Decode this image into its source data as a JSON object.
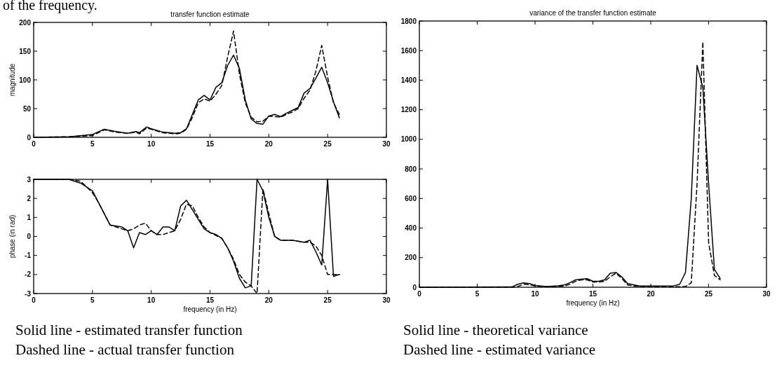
{
  "chart_data": [
    {
      "type": "line",
      "title": "transfer function estimate",
      "ylabel": "magnitude",
      "xlim": [
        0,
        30
      ],
      "ylim": [
        0,
        200
      ],
      "xticks": [
        0,
        5,
        10,
        15,
        20,
        25,
        30
      ],
      "yticks": [
        0,
        50,
        100,
        150,
        200
      ],
      "annotations": [
        "of the frequency."
      ],
      "series": [
        {
          "color": "#000000",
          "line_style": "solid",
          "x": [
            0,
            3,
            5,
            6,
            7,
            8,
            8.7,
            9,
            9.6,
            10,
            11,
            12,
            12.5,
            13,
            13.5,
            14,
            14.5,
            15,
            15.5,
            16,
            16.5,
            17,
            17.5,
            18,
            18.5,
            19,
            19.5,
            20,
            20.5,
            21,
            21.5,
            22,
            22.5,
            23,
            23.5,
            24,
            24.5,
            25,
            25.5,
            26
          ],
          "values": [
            0,
            1,
            5,
            14,
            10,
            7,
            10,
            8,
            18,
            15,
            9,
            7,
            8,
            15,
            40,
            65,
            73,
            65,
            87,
            95,
            125,
            143,
            120,
            65,
            32,
            24,
            23,
            37,
            40,
            36,
            42,
            47,
            52,
            77,
            85,
            103,
            122,
            95,
            62,
            34
          ]
        },
        {
          "color": "#000000",
          "line_style": "dashed",
          "x": [
            0,
            3,
            5,
            6,
            7,
            8,
            8.7,
            9,
            9.6,
            10,
            11,
            12,
            12.5,
            13,
            13.5,
            14,
            14.5,
            15,
            15.5,
            16,
            16.5,
            17,
            17.5,
            18,
            18.5,
            19,
            19.5,
            20,
            20.5,
            21,
            21.5,
            22,
            22.5,
            23,
            23.5,
            24,
            24.5,
            25,
            25.5,
            26
          ],
          "values": [
            0,
            1,
            3,
            13,
            9,
            7,
            9,
            6,
            16,
            14,
            8,
            6,
            7,
            14,
            35,
            60,
            67,
            63,
            75,
            90,
            140,
            185,
            110,
            60,
            35,
            27,
            28,
            37,
            36,
            35,
            40,
            44,
            50,
            68,
            82,
            115,
            160,
            105,
            60,
            40
          ]
        }
      ]
    },
    {
      "type": "line",
      "xlabel": "frequency (in Hz)",
      "ylabel": "phase (in rad)",
      "xlim": [
        0,
        30
      ],
      "ylim": [
        -3,
        3
      ],
      "xticks": [
        0,
        5,
        10,
        15,
        20,
        25,
        30
      ],
      "yticks": [
        -3,
        -2,
        -1,
        0,
        1,
        2,
        3
      ],
      "annotations": [
        "Solid line - estimated transfer function",
        "Dashed line - actual transfer function"
      ],
      "series": [
        {
          "color": "#000000",
          "line_style": "solid",
          "x": [
            0,
            3,
            4,
            5,
            6,
            6.5,
            7.5,
            8,
            8.5,
            9,
            9.5,
            10,
            10.5,
            11,
            11.5,
            12,
            12.5,
            13,
            13.5,
            14,
            14.5,
            15,
            15.5,
            16,
            16.5,
            17,
            17.5,
            18,
            18.5,
            19,
            19.5,
            20,
            20.5,
            21,
            22,
            23,
            23.5,
            24,
            24.5,
            25,
            25.5,
            26
          ],
          "values": [
            3,
            3,
            2.8,
            2.4,
            1.2,
            0.6,
            0.5,
            0.3,
            -0.6,
            0.2,
            0.1,
            0.3,
            0.1,
            0.5,
            0.5,
            0.3,
            1.6,
            1.9,
            1.4,
            0.9,
            0.4,
            0.2,
            0.1,
            -0.1,
            -0.6,
            -1.3,
            -2.2,
            -2.7,
            -2.6,
            3,
            2.4,
            1,
            0,
            -0.2,
            -0.2,
            -0.3,
            -0.2,
            -0.8,
            -1.5,
            3,
            -2.1,
            -2
          ]
        },
        {
          "color": "#000000",
          "line_style": "dashed",
          "x": [
            0,
            3,
            4,
            5,
            5.5,
            6,
            6.5,
            7.5,
            8,
            8.5,
            9,
            9.5,
            10,
            10.5,
            11,
            12,
            12.5,
            13,
            13.5,
            14,
            14.5,
            15,
            16,
            16.5,
            17,
            17.5,
            18,
            18.5,
            19,
            19.5,
            20,
            20.5,
            21,
            22,
            23,
            23.5,
            24,
            24.5,
            25,
            25.5,
            26
          ],
          "values": [
            3,
            3,
            2.9,
            2.3,
            1.8,
            1.2,
            0.6,
            0.4,
            0.3,
            0.4,
            0.6,
            0.7,
            0.3,
            0.1,
            0.1,
            0.3,
            0.9,
            1.7,
            1.6,
            1,
            0.5,
            0.2,
            -0.1,
            -0.6,
            -1.2,
            -2,
            -2.4,
            -2.6,
            -3,
            2.5,
            1.2,
            0,
            -0.2,
            -0.2,
            -0.3,
            -0.3,
            -0.5,
            -1,
            -2,
            -2,
            -2
          ]
        }
      ]
    },
    {
      "type": "line",
      "title": "variance of the transfer function estimate",
      "xlabel": "frequency (in Hz)",
      "xlim": [
        0,
        30
      ],
      "ylim": [
        0,
        1800
      ],
      "xticks": [
        0,
        5,
        10,
        15,
        20,
        25,
        30
      ],
      "yticks": [
        0,
        200,
        400,
        600,
        800,
        1000,
        1200,
        1400,
        1600,
        1800
      ],
      "annotations": [
        "Solid line - theoretical variance",
        "Dashed line - estimated variance"
      ],
      "series": [
        {
          "color": "#000000",
          "line_style": "solid",
          "x": [
            0,
            8,
            8.5,
            9,
            9.5,
            10,
            11,
            12,
            12.5,
            13,
            13.5,
            14,
            14.5,
            15,
            15.5,
            16,
            16.5,
            17,
            17.5,
            18,
            19,
            22,
            22.5,
            23,
            23.5,
            24,
            24.5,
            25,
            25.5,
            26
          ],
          "values": [
            0,
            2,
            20,
            30,
            25,
            12,
            5,
            10,
            15,
            30,
            50,
            55,
            58,
            40,
            40,
            50,
            95,
            100,
            70,
            25,
            8,
            10,
            20,
            100,
            600,
            1500,
            1350,
            700,
            120,
            60
          ]
        },
        {
          "color": "#000000",
          "line_style": "dashed",
          "x": [
            0,
            8,
            8.5,
            9,
            9.5,
            10,
            11,
            12,
            12.5,
            13,
            13.5,
            14,
            14.5,
            15,
            15.5,
            16,
            16.5,
            17,
            17.5,
            18,
            19,
            22,
            23,
            23.5,
            24,
            24.5,
            25,
            25.5,
            26
          ],
          "values": [
            0,
            0,
            5,
            20,
            18,
            8,
            3,
            5,
            8,
            20,
            40,
            50,
            50,
            35,
            35,
            40,
            70,
            95,
            60,
            15,
            5,
            3,
            5,
            30,
            700,
            1660,
            300,
            80,
            50
          ]
        }
      ]
    }
  ]
}
